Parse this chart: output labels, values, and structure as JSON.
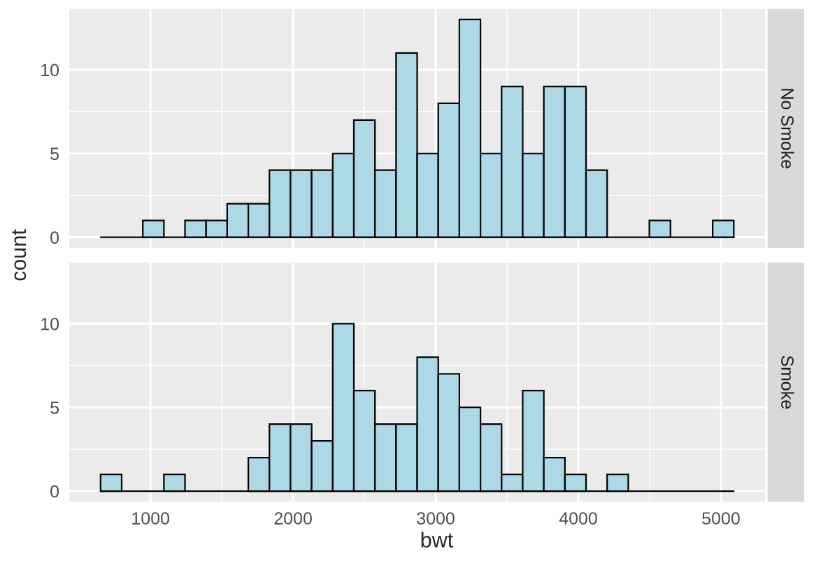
{
  "chart_data": [
    {
      "type": "histogram",
      "ylabel": "count",
      "bins": [
        650,
        798,
        946,
        1094,
        1242,
        1390,
        1538,
        1686,
        1834,
        1982,
        2130,
        2278,
        2426,
        2574,
        2722,
        2870,
        3018,
        3166,
        3314,
        3462,
        3610,
        3758,
        3906,
        4054,
        4202,
        4350,
        4498,
        4646,
        4794,
        4942,
        5090
      ],
      "series": [
        {
          "name": "No Smoke",
          "color": "#add8e6",
          "values": [
            0,
            0,
            1,
            0,
            1,
            1,
            2,
            2,
            4,
            4,
            4,
            5,
            7,
            4,
            11,
            5,
            8,
            13,
            5,
            9,
            5,
            9,
            9,
            4,
            0,
            0,
            1,
            0,
            0,
            1
          ]
        }
      ],
      "xlim": [
        430,
        5310
      ],
      "ylim": [
        -0.65,
        13.65
      ],
      "yticks": [
        0,
        5,
        10
      ],
      "xticks": [
        1000,
        2000,
        3000,
        4000,
        5000
      ],
      "grid": true,
      "tick_labels": "y"
    },
    {
      "type": "histogram",
      "xlabel": "bwt",
      "bins": [
        650,
        798,
        946,
        1094,
        1242,
        1390,
        1538,
        1686,
        1834,
        1982,
        2130,
        2278,
        2426,
        2574,
        2722,
        2870,
        3018,
        3166,
        3314,
        3462,
        3610,
        3758,
        3906,
        4054,
        4202,
        4350,
        4498,
        4646,
        4794,
        4942,
        5090
      ],
      "series": [
        {
          "name": "Smoke",
          "color": "#add8e6",
          "values": [
            1,
            0,
            0,
            1,
            0,
            0,
            0,
            2,
            4,
            4,
            3,
            10,
            6,
            4,
            4,
            8,
            7,
            5,
            4,
            1,
            6,
            2,
            1,
            0,
            1,
            0,
            0,
            0,
            0,
            0
          ]
        }
      ],
      "xlim": [
        430,
        5310
      ],
      "ylim": [
        -0.65,
        13.65
      ],
      "yticks": [
        0,
        5,
        10
      ],
      "xticks": [
        1000,
        2000,
        3000,
        4000,
        5000
      ],
      "grid": true
    }
  ]
}
